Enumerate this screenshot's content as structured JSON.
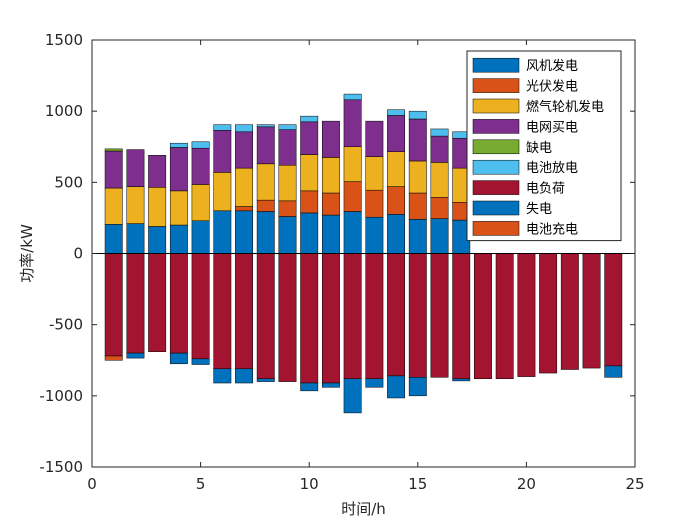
{
  "chart_data": {
    "type": "bar",
    "stacked": true,
    "title": "",
    "xlabel": "时间/h",
    "ylabel": "功率/kW",
    "xlim": [
      0,
      25
    ],
    "ylim": [
      -1500,
      1500
    ],
    "xticks": [
      0,
      5,
      10,
      15,
      20,
      25
    ],
    "yticks": [
      -1500,
      -1000,
      -500,
      0,
      500,
      1000,
      1500
    ],
    "legend_position": "top-right",
    "hours": [
      1,
      2,
      3,
      4,
      5,
      6,
      7,
      8,
      9,
      10,
      11,
      12,
      13,
      14,
      15,
      16,
      17,
      18,
      19,
      20,
      21,
      22,
      23,
      24
    ],
    "series": [
      {
        "name": "风机发电",
        "color": "#0072BD",
        "values": [
          205,
          210,
          190,
          200,
          230,
          300,
          300,
          295,
          260,
          285,
          270,
          295,
          255,
          275,
          240,
          245,
          235,
          0,
          0,
          0,
          0,
          0,
          0,
          0
        ]
      },
      {
        "name": "光伏发电",
        "color": "#D95319",
        "values": [
          0,
          0,
          0,
          0,
          0,
          0,
          30,
          80,
          110,
          155,
          155,
          210,
          190,
          195,
          185,
          150,
          125,
          0,
          0,
          0,
          0,
          0,
          0,
          0
        ]
      },
      {
        "name": "燃气轮机发电",
        "color": "#EDB120",
        "values": [
          255,
          260,
          275,
          240,
          255,
          270,
          270,
          255,
          250,
          255,
          250,
          245,
          235,
          245,
          225,
          245,
          240,
          0,
          0,
          0,
          0,
          0,
          0,
          0
        ]
      },
      {
        "name": "电网买电",
        "color": "#7E2F8E",
        "values": [
          260,
          260,
          225,
          305,
          255,
          295,
          255,
          260,
          250,
          230,
          255,
          330,
          250,
          255,
          295,
          185,
          210,
          0,
          0,
          0,
          0,
          0,
          0,
          0
        ]
      },
      {
        "name": "缺电",
        "color": "#77AC30",
        "values": [
          15,
          0,
          0,
          0,
          0,
          0,
          0,
          0,
          0,
          0,
          0,
          0,
          0,
          0,
          0,
          0,
          0,
          0,
          0,
          0,
          0,
          0,
          0,
          0
        ]
      },
      {
        "name": "电池放电",
        "color": "#4DBEEE",
        "values": [
          0,
          0,
          0,
          30,
          45,
          40,
          50,
          15,
          35,
          40,
          0,
          40,
          0,
          40,
          55,
          50,
          45,
          0,
          0,
          0,
          0,
          0,
          0,
          0
        ]
      },
      {
        "name": "电负荷",
        "color": "#A2142F",
        "values": [
          -720,
          -700,
          -690,
          -700,
          -740,
          -810,
          -810,
          -880,
          -900,
          -910,
          -910,
          -880,
          -880,
          -860,
          -870,
          -870,
          -880,
          -880,
          -880,
          -865,
          -840,
          -815,
          -805,
          -790
        ]
      },
      {
        "name": "失电",
        "color": "#0072BD",
        "values": [
          0,
          -35,
          0,
          -75,
          -40,
          -100,
          -100,
          -20,
          0,
          -55,
          -30,
          -240,
          -60,
          -155,
          -130,
          0,
          -15,
          0,
          0,
          0,
          0,
          0,
          0,
          -80
        ]
      },
      {
        "name": "电池充电",
        "color": "#D95319",
        "values": [
          -30,
          0,
          0,
          0,
          0,
          0,
          0,
          0,
          0,
          0,
          0,
          0,
          0,
          0,
          0,
          0,
          0,
          0,
          0,
          0,
          0,
          0,
          0,
          0
        ]
      }
    ]
  }
}
